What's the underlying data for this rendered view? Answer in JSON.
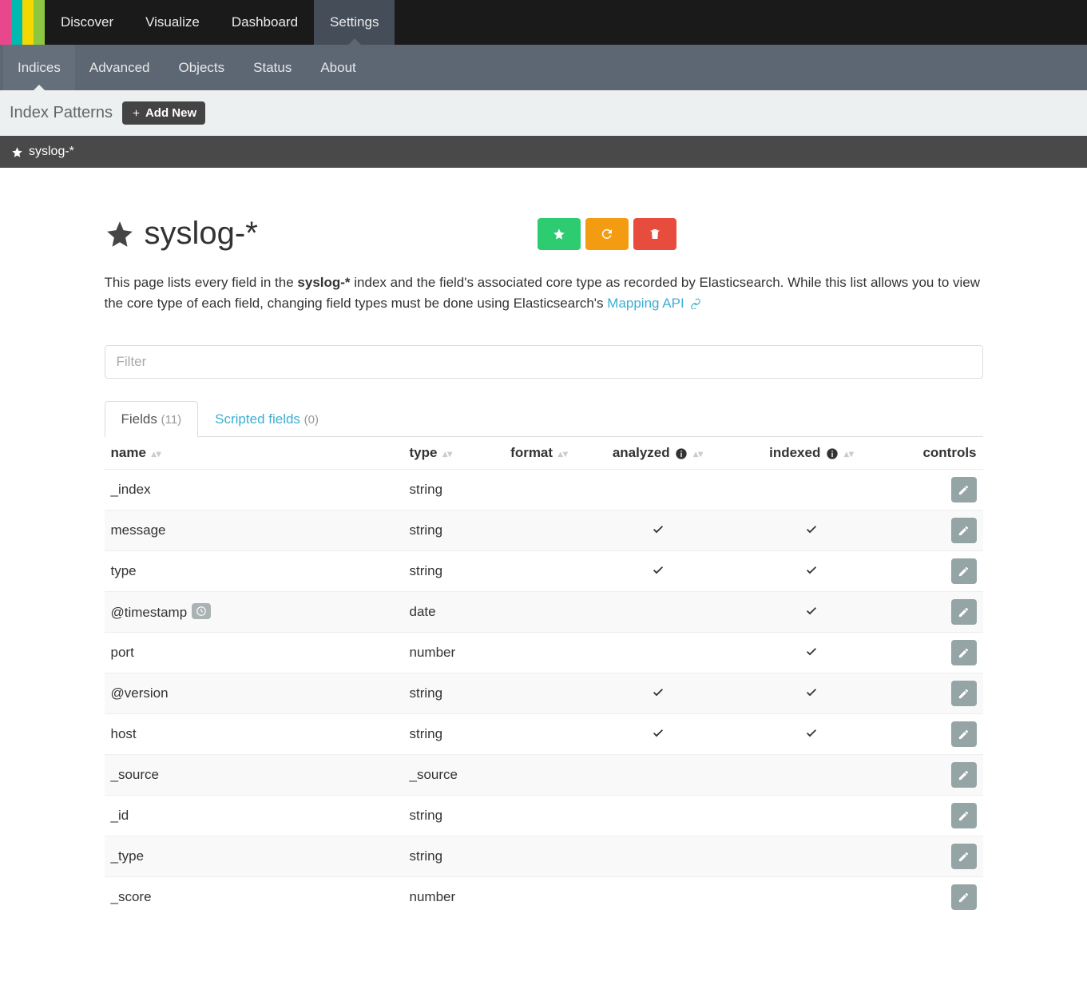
{
  "logo_colors": [
    "#e8488b",
    "#00b9b1",
    "#f5d800",
    "#8dc63f"
  ],
  "topnav": [
    {
      "label": "Discover",
      "active": false
    },
    {
      "label": "Visualize",
      "active": false
    },
    {
      "label": "Dashboard",
      "active": false
    },
    {
      "label": "Settings",
      "active": true
    }
  ],
  "subnav": [
    {
      "label": "Indices",
      "active": true
    },
    {
      "label": "Advanced",
      "active": false
    },
    {
      "label": "Objects",
      "active": false
    },
    {
      "label": "Status",
      "active": false
    },
    {
      "label": "About",
      "active": false
    }
  ],
  "index_patterns_label": "Index Patterns",
  "add_new_label": "Add New",
  "current_pattern": "syslog-*",
  "page_title": "syslog-*",
  "desc_pre": "This page lists every field in the ",
  "desc_bold": "syslog-*",
  "desc_post": " index and the field's associated core type as recorded by Elasticsearch. While this list allows you to view the core type of each field, changing field types must be done using Elasticsearch's ",
  "desc_link": "Mapping API",
  "filter_placeholder": "Filter",
  "tabs": {
    "fields_label": "Fields",
    "fields_count": "(11)",
    "scripted_label": "Scripted fields",
    "scripted_count": "(0)"
  },
  "columns": {
    "name": "name",
    "type": "type",
    "format": "format",
    "analyzed": "analyzed",
    "indexed": "indexed",
    "controls": "controls"
  },
  "rows": [
    {
      "name": "_index",
      "type": "string",
      "analyzed": false,
      "indexed": false,
      "clock": false
    },
    {
      "name": "message",
      "type": "string",
      "analyzed": true,
      "indexed": true,
      "clock": false
    },
    {
      "name": "type",
      "type": "string",
      "analyzed": true,
      "indexed": true,
      "clock": false
    },
    {
      "name": "@timestamp",
      "type": "date",
      "analyzed": false,
      "indexed": true,
      "clock": true
    },
    {
      "name": "port",
      "type": "number",
      "analyzed": false,
      "indexed": true,
      "clock": false
    },
    {
      "name": "@version",
      "type": "string",
      "analyzed": true,
      "indexed": true,
      "clock": false
    },
    {
      "name": "host",
      "type": "string",
      "analyzed": true,
      "indexed": true,
      "clock": false
    },
    {
      "name": "_source",
      "type": "_source",
      "analyzed": false,
      "indexed": false,
      "clock": false
    },
    {
      "name": "_id",
      "type": "string",
      "analyzed": false,
      "indexed": false,
      "clock": false
    },
    {
      "name": "_type",
      "type": "string",
      "analyzed": false,
      "indexed": false,
      "clock": false
    },
    {
      "name": "_score",
      "type": "number",
      "analyzed": false,
      "indexed": false,
      "clock": false
    }
  ]
}
